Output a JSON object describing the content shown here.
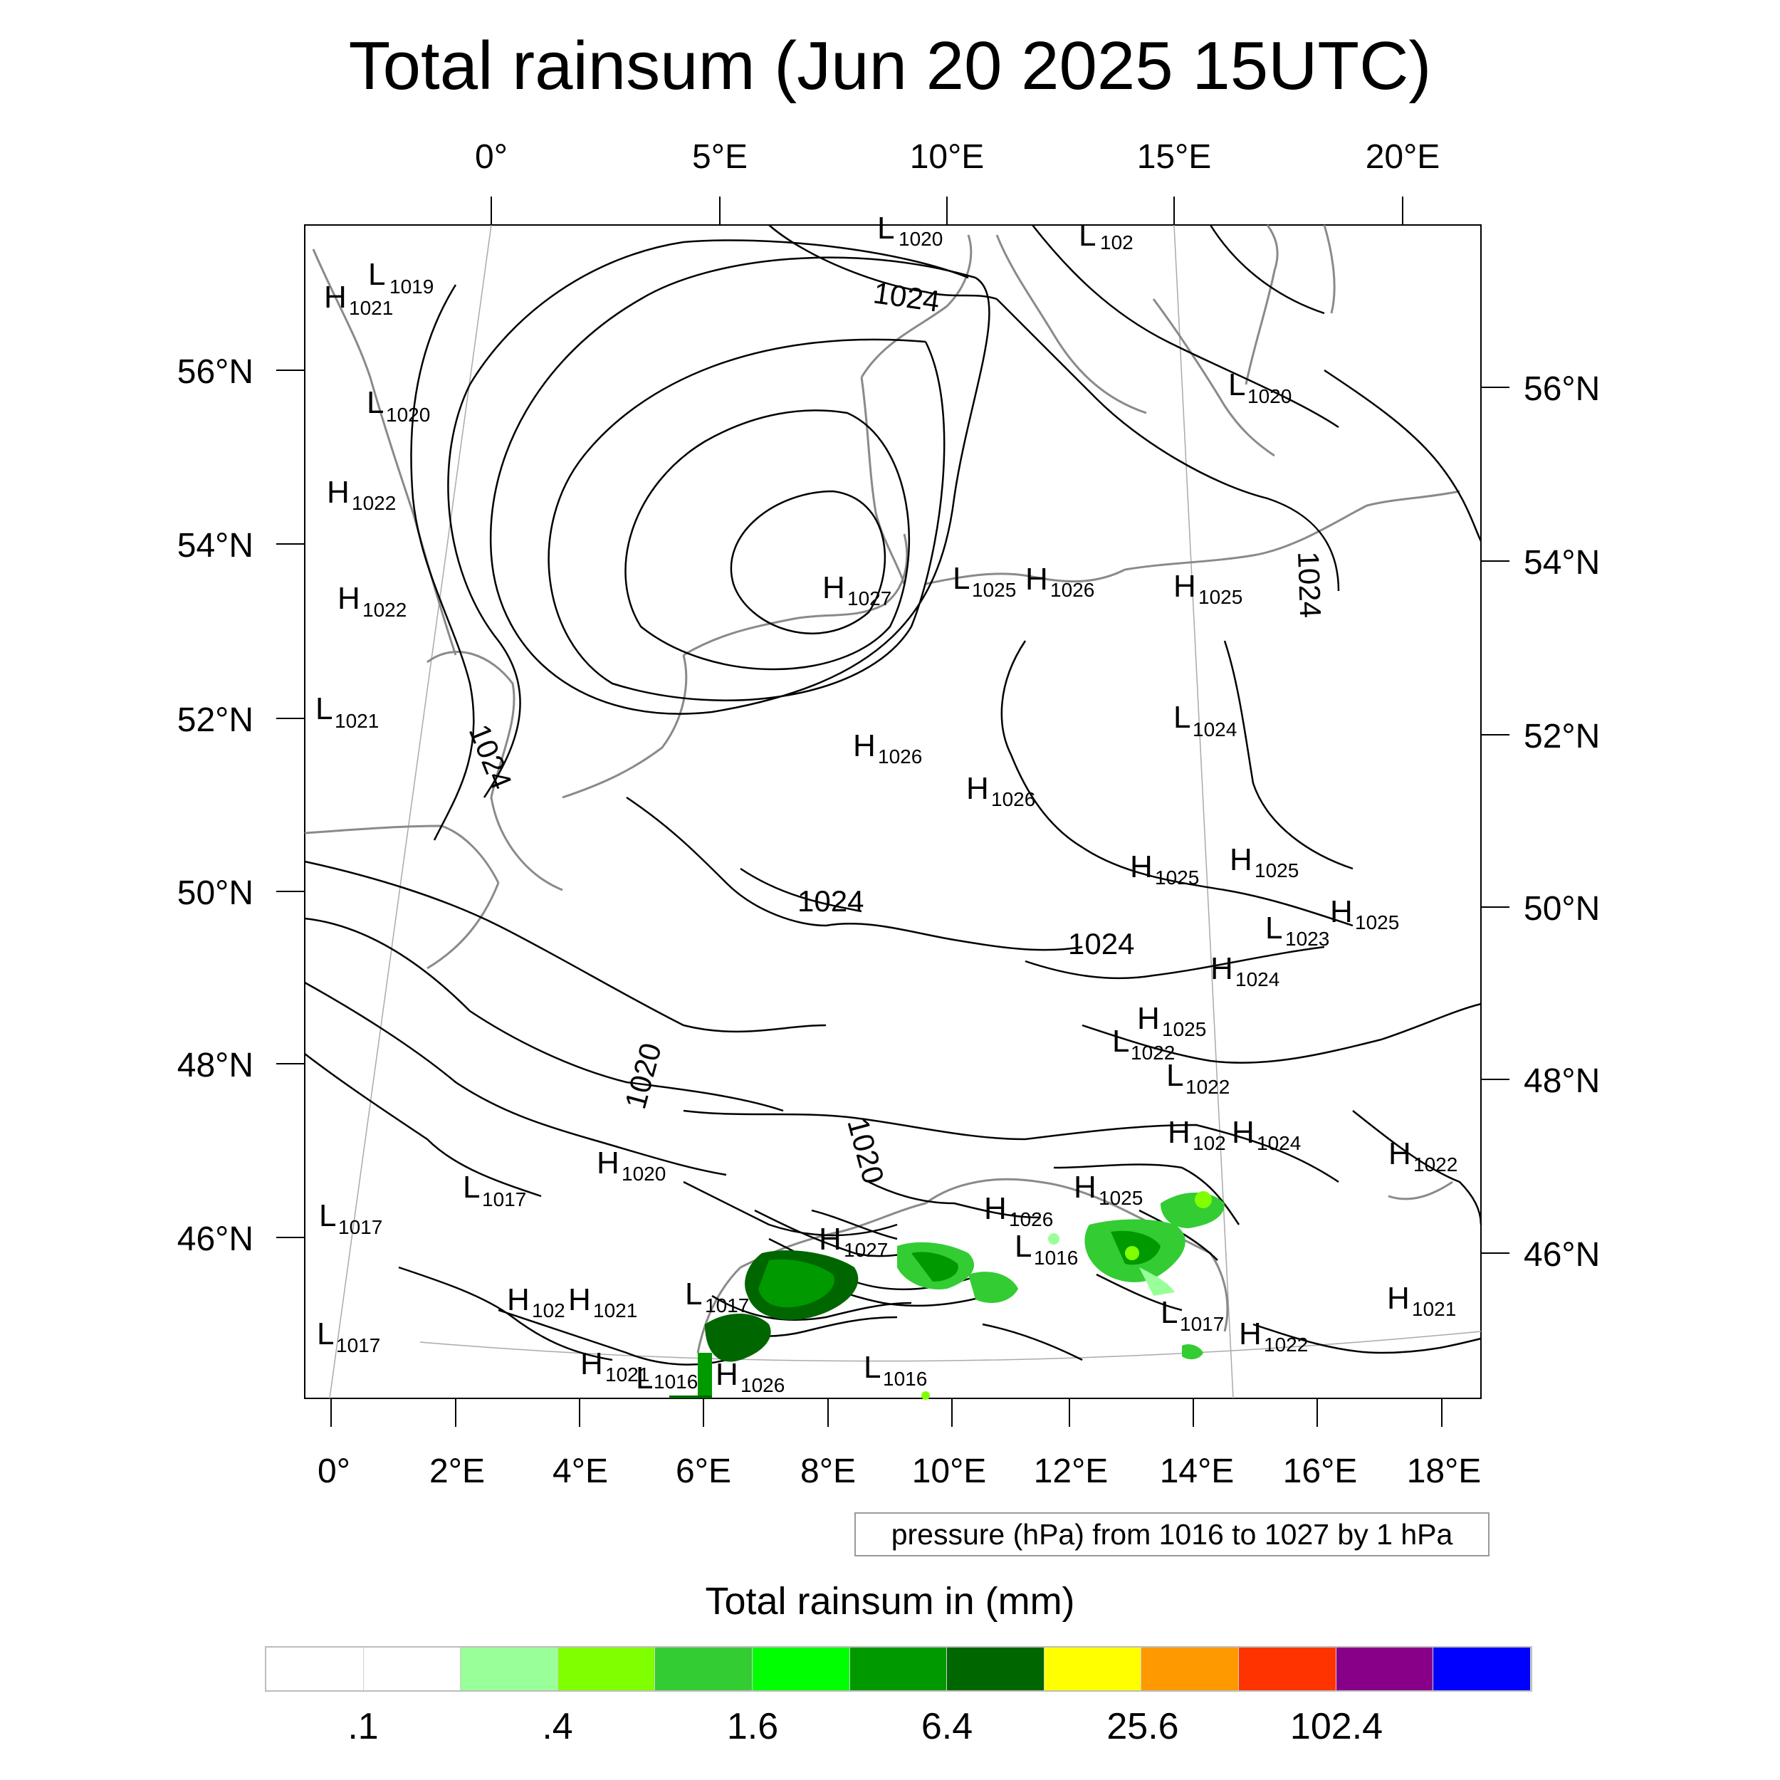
{
  "title": "Total rainsum (Jun 20 2025 15UTC)",
  "map": {
    "top_lon_labels": [
      "0°",
      "5°E",
      "10°E",
      "15°E",
      "20°E"
    ],
    "bottom_lon_labels": [
      "0°",
      "2°E",
      "4°E",
      "6°E",
      "8°E",
      "10°E",
      "12°E",
      "14°E",
      "16°E",
      "18°E"
    ],
    "left_lat_labels": [
      "56°N",
      "54°N",
      "52°N",
      "50°N",
      "48°N",
      "46°N"
    ],
    "right_lat_labels": [
      "56°N",
      "54°N",
      "52°N",
      "50°N",
      "48°N",
      "46°N"
    ],
    "contour_labels": [
      "1024",
      "1024",
      "1024",
      "1024",
      "1024",
      "1020",
      "1020"
    ],
    "pressure_centers": [
      {
        "type": "L",
        "value": "1020"
      },
      {
        "type": "L",
        "value": "102"
      },
      {
        "type": "L",
        "value": "1019"
      },
      {
        "type": "H",
        "value": "1021"
      },
      {
        "type": "L",
        "value": "1020"
      },
      {
        "type": "L",
        "value": "1020"
      },
      {
        "type": "H",
        "value": "1022"
      },
      {
        "type": "H",
        "value": "1022"
      },
      {
        "type": "H",
        "value": "1027"
      },
      {
        "type": "L",
        "value": "1025"
      },
      {
        "type": "H",
        "value": "1026"
      },
      {
        "type": "H",
        "value": "1025"
      },
      {
        "type": "L",
        "value": "1021"
      },
      {
        "type": "L",
        "value": "1024"
      },
      {
        "type": "H",
        "value": "1026"
      },
      {
        "type": "H",
        "value": "1026"
      },
      {
        "type": "H",
        "value": "1025"
      },
      {
        "type": "H",
        "value": "1025"
      },
      {
        "type": "H",
        "value": "1025"
      },
      {
        "type": "L",
        "value": "1023"
      },
      {
        "type": "H",
        "value": "1024"
      },
      {
        "type": "H",
        "value": "1025"
      },
      {
        "type": "L",
        "value": "1022"
      },
      {
        "type": "L",
        "value": "1022"
      },
      {
        "type": "H",
        "value": "102"
      },
      {
        "type": "H",
        "value": "1024"
      },
      {
        "type": "H",
        "value": "1020"
      },
      {
        "type": "L",
        "value": "1017"
      },
      {
        "type": "H",
        "value": "1022"
      },
      {
        "type": "L",
        "value": "1017"
      },
      {
        "type": "H",
        "value": "1026"
      },
      {
        "type": "H",
        "value": "1025"
      },
      {
        "type": "H",
        "value": "1027"
      },
      {
        "type": "L",
        "value": "1016"
      },
      {
        "type": "H",
        "value": "102"
      },
      {
        "type": "H",
        "value": "1021"
      },
      {
        "type": "L",
        "value": "1017"
      },
      {
        "type": "L",
        "value": "1017"
      },
      {
        "type": "H",
        "value": "1021"
      },
      {
        "type": "H",
        "value": "1022"
      },
      {
        "type": "L",
        "value": "1017"
      },
      {
        "type": "H",
        "value": "1021"
      },
      {
        "type": "L",
        "value": "1016"
      },
      {
        "type": "H",
        "value": "1026"
      },
      {
        "type": "L",
        "value": "1016"
      }
    ]
  },
  "info_box": "pressure (hPa) from 1016 to 1027 by 1 hPa",
  "colorbar": {
    "title": "Total rainsum in (mm)",
    "colors": [
      "#ffffff",
      "#ffffff",
      "#99ff99",
      "#80ff00",
      "#33cc33",
      "#00ff00",
      "#009900",
      "#006600",
      "#ffff00",
      "#ff9900",
      "#ff3300",
      "#880088",
      "#0000ff"
    ],
    "labels": [
      ".1",
      ".4",
      "1.6",
      "6.4",
      "25.6",
      "102.4"
    ]
  }
}
